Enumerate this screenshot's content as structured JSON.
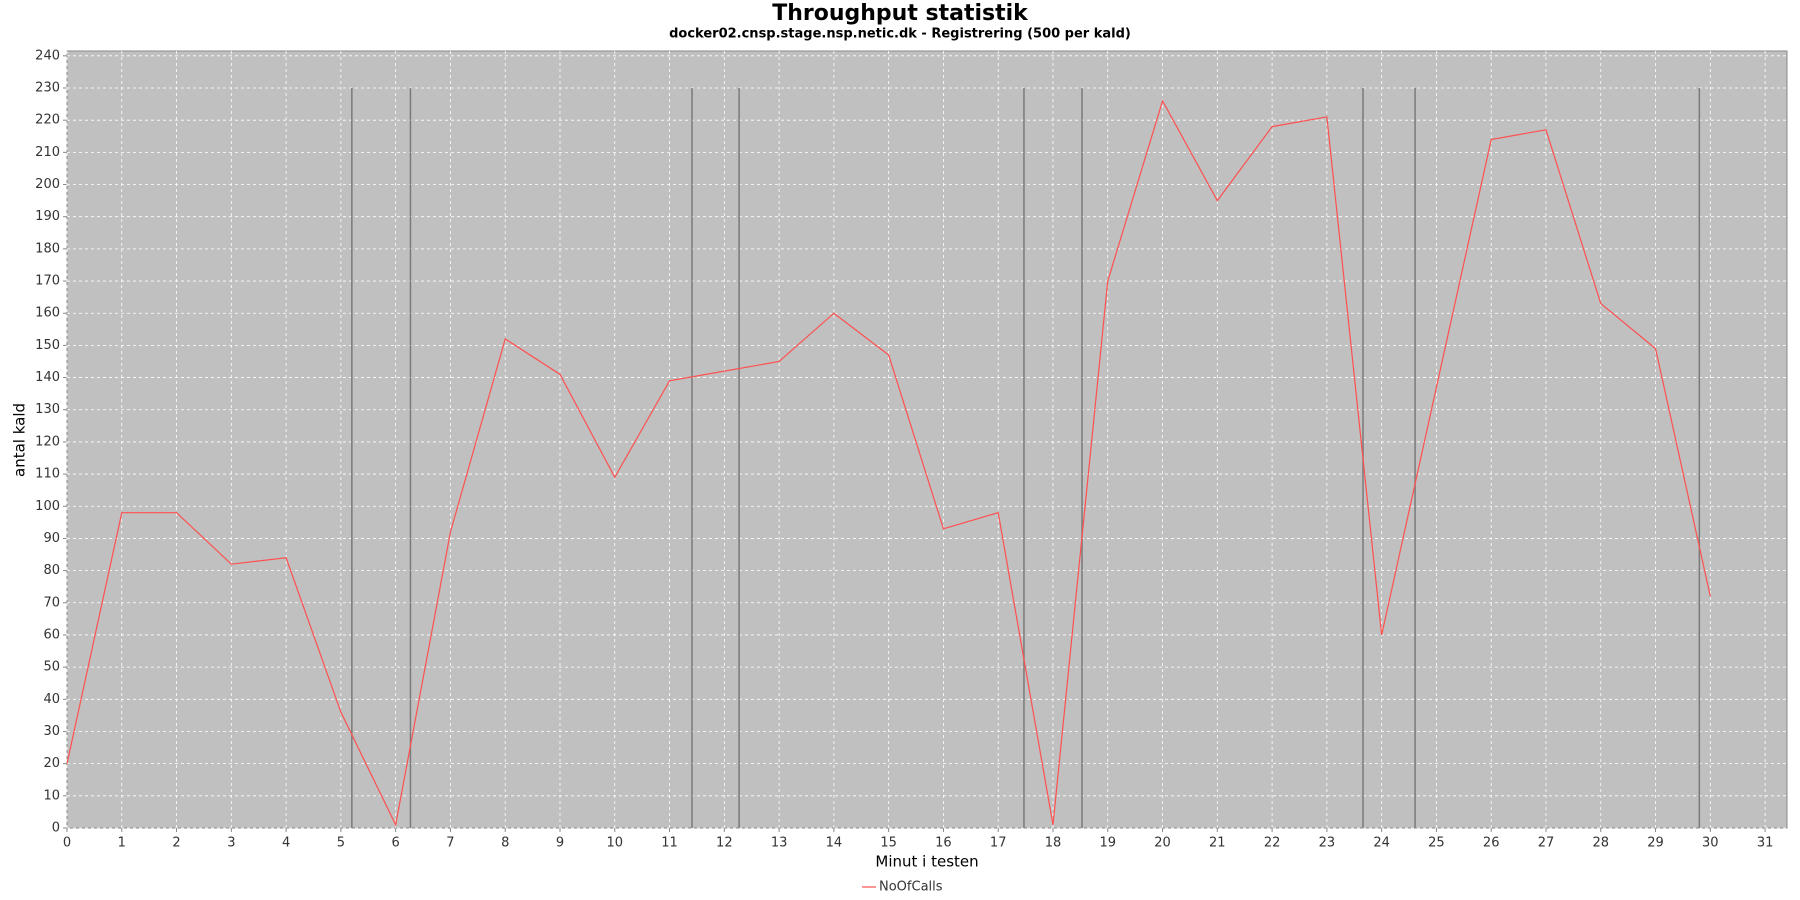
{
  "chart_data": {
    "type": "line",
    "title": "Throughput statistik",
    "subtitle": "docker02.cnsp.stage.nsp.netic.dk - Registrering (500 per kald)",
    "x_label": "Minut i testen",
    "y_label": "antal kald",
    "x": [
      0,
      1,
      2,
      3,
      4,
      5,
      6,
      7,
      8,
      9,
      10,
      11,
      12,
      13,
      14,
      15,
      16,
      17,
      18,
      19,
      20,
      21,
      22,
      23,
      24,
      25,
      26,
      27,
      28,
      29,
      30
    ],
    "series": [
      {
        "name": "NoOfCalls",
        "color": "#ff5050",
        "values": [
          20,
          98,
          98,
          82,
          84,
          36,
          1,
          92,
          152,
          141,
          109,
          139,
          142,
          145,
          160,
          147,
          93,
          98,
          1,
          170,
          226,
          195,
          218,
          221,
          60,
          137,
          214,
          217,
          163,
          149,
          72
        ]
      }
    ],
    "markers": [
      5.2,
      6.27,
      11.41,
      12.27,
      17.47,
      18.53,
      23.66,
      24.61,
      29.8
    ],
    "marker_range": [
      0,
      230
    ],
    "xlim": [
      0,
      31.4
    ],
    "ylim": [
      0,
      241.5
    ],
    "xticks": [
      0,
      1,
      2,
      3,
      4,
      5,
      6,
      7,
      8,
      9,
      10,
      11,
      12,
      13,
      14,
      15,
      16,
      17,
      18,
      19,
      20,
      21,
      22,
      23,
      24,
      25,
      26,
      27,
      28,
      29,
      30,
      31
    ],
    "yticks": [
      0,
      10,
      20,
      30,
      40,
      50,
      60,
      70,
      80,
      90,
      100,
      110,
      120,
      130,
      140,
      150,
      160,
      170,
      180,
      190,
      200,
      210,
      220,
      230,
      240
    ],
    "grid": true,
    "legend": "bottom"
  }
}
